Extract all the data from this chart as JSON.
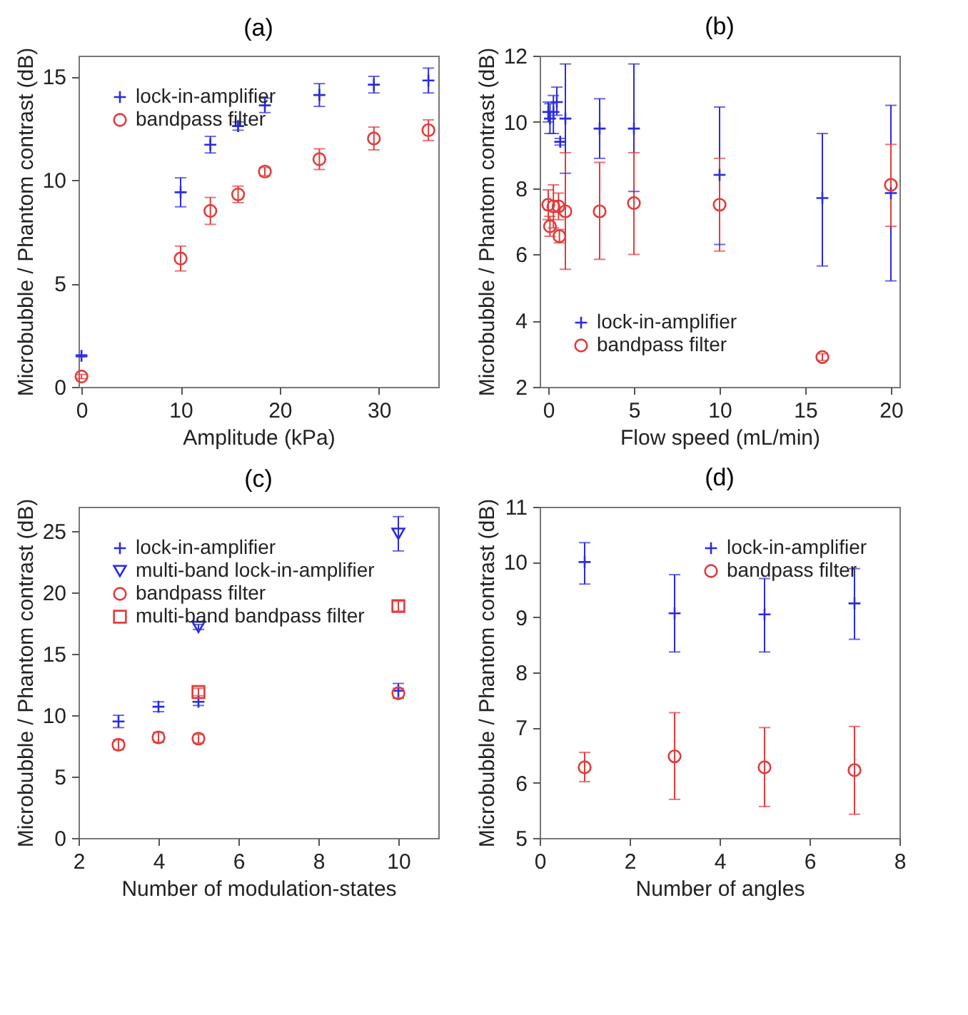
{
  "chart_data": [
    {
      "type": "scatter",
      "title": "(a)",
      "xlabel": "Amplitude (kPa)",
      "ylabel": "Microbubble / Phantom contrast (dB)",
      "xlim": [
        -0.3,
        36
      ],
      "xticks": [
        0,
        10,
        20,
        30
      ],
      "ylim": [
        0,
        16
      ],
      "yticks": [
        0,
        5,
        10,
        15
      ],
      "legend": "top left",
      "series": [
        {
          "name": "lock-in-amplifier",
          "color": "#2b2bdd",
          "marker": "cross",
          "x": [
            0,
            10,
            13,
            15.8,
            18.5,
            24,
            29.5,
            35
          ],
          "values": [
            1.5,
            9.4,
            11.7,
            12.6,
            13.6,
            14.1,
            14.6,
            14.8
          ],
          "errors": [
            [
              1.45,
              1.55
            ],
            [
              8.7,
              10.1
            ],
            [
              11.3,
              12.1
            ],
            [
              12.4,
              12.8
            ],
            [
              13.25,
              13.95
            ],
            [
              13.55,
              14.65
            ],
            [
              14.2,
              15.0
            ],
            [
              14.2,
              15.4
            ]
          ]
        },
        {
          "name": "bandpass filter",
          "color": "#e33b3b",
          "marker": "circle",
          "x": [
            0,
            10,
            13,
            15.8,
            18.5,
            24,
            29.5,
            35
          ],
          "values": [
            0.5,
            6.2,
            8.5,
            9.3,
            10.4,
            11.0,
            12.0,
            12.4
          ],
          "errors": [
            [
              0.4,
              0.6
            ],
            [
              5.6,
              6.8
            ],
            [
              7.85,
              9.15
            ],
            [
              8.9,
              9.7
            ],
            [
              10.2,
              10.6
            ],
            [
              10.5,
              11.5
            ],
            [
              11.45,
              12.55
            ],
            [
              11.9,
              12.9
            ]
          ]
        }
      ]
    },
    {
      "type": "scatter",
      "title": "(b)",
      "xlabel": "Flow speed (mL/min)",
      "ylabel": "Microbubble / Phantom contrast (dB)",
      "xlim": [
        -0.5,
        20.5
      ],
      "xticks": [
        0,
        5,
        10,
        15,
        20
      ],
      "ylim": [
        2,
        12
      ],
      "yticks": [
        2,
        4,
        6,
        8,
        10,
        12
      ],
      "legend": "bottom left",
      "series": [
        {
          "name": "lock-in-amplifier",
          "color": "#2b2bdd",
          "marker": "cross",
          "x": [
            0,
            0.1,
            0.3,
            0.5,
            0.7,
            1,
            3,
            5,
            10,
            16,
            20
          ],
          "values": [
            10.3,
            10.1,
            10.3,
            10.6,
            9.4,
            10.1,
            9.8,
            9.8,
            8.4,
            7.7,
            7.85
          ],
          "errors": [
            [
              10.0,
              10.6
            ],
            [
              9.65,
              10.55
            ],
            [
              9.65,
              10.8
            ],
            [
              10.2,
              11.05
            ],
            [
              9.3,
              9.5
            ],
            [
              8.45,
              11.75
            ],
            [
              8.9,
              10.7
            ],
            [
              7.9,
              11.75
            ],
            [
              6.3,
              10.45
            ],
            [
              5.65,
              9.65
            ],
            [
              5.2,
              10.5
            ]
          ]
        },
        {
          "name": "bandpass filter",
          "color": "#e33b3b",
          "marker": "circle",
          "x": [
            0,
            0.1,
            0.3,
            0.6,
            0.65,
            1,
            3,
            5,
            10,
            16,
            20
          ],
          "values": [
            7.5,
            6.85,
            7.45,
            7.45,
            6.55,
            7.3,
            7.3,
            7.55,
            7.5,
            2.9,
            8.1
          ],
          "errors": [
            [
              7.05,
              7.95
            ],
            [
              6.55,
              7.15
            ],
            [
              6.8,
              8.1
            ],
            [
              7.05,
              7.85
            ],
            [
              6.35,
              6.75
            ],
            [
              5.55,
              9.07
            ],
            [
              5.85,
              8.78
            ],
            [
              6.0,
              9.07
            ],
            [
              6.1,
              8.9
            ],
            [
              2.8,
              3.0
            ],
            [
              6.85,
              9.32
            ]
          ]
        }
      ]
    },
    {
      "type": "scatter",
      "title": "(c)",
      "xlabel": "Number of modulation-states",
      "ylabel": "Microbubble / Phantom contrast (dB)",
      "xlim": [
        2,
        11
      ],
      "xticks": [
        2,
        4,
        6,
        8,
        10
      ],
      "ylim": [
        0,
        27
      ],
      "yticks": [
        0,
        5,
        10,
        15,
        20,
        25
      ],
      "legend": "top left",
      "series": [
        {
          "name": "lock-in-amplifier",
          "color": "#2b2bdd",
          "marker": "cross",
          "x": [
            3,
            4,
            5,
            10
          ],
          "values": [
            9.5,
            10.7,
            11.1,
            12.0
          ],
          "errors": [
            [
              9.0,
              10.0
            ],
            [
              10.3,
              11.1
            ],
            [
              10.8,
              11.4
            ],
            [
              11.4,
              12.6
            ]
          ]
        },
        {
          "name": "multi-band lock-in-amplifier",
          "color": "#2b2bdd",
          "marker": "triangle",
          "x": [
            5,
            10
          ],
          "values": [
            17.2,
            24.8
          ],
          "errors": [
            [
              17.0,
              17.4
            ],
            [
              23.4,
              26.2
            ]
          ]
        },
        {
          "name": "bandpass filter",
          "color": "#e33b3b",
          "marker": "circle",
          "x": [
            3,
            4,
            5,
            10
          ],
          "values": [
            7.6,
            8.2,
            8.1,
            11.8
          ],
          "errors": [
            [
              7.2,
              8.0
            ],
            [
              7.8,
              8.6
            ],
            [
              7.75,
              8.45
            ],
            [
              11.4,
              12.2
            ]
          ]
        },
        {
          "name": "multi-band bandpass filter",
          "color": "#e33b3b",
          "marker": "square",
          "x": [
            5,
            10
          ],
          "values": [
            11.9,
            18.9
          ],
          "errors": [
            [
              11.6,
              12.2
            ],
            [
              18.5,
              19.3
            ]
          ]
        }
      ]
    },
    {
      "type": "scatter",
      "title": "(d)",
      "xlabel": "Number of angles",
      "ylabel": "Microbubble / Phantom contrast (dB)",
      "xlim": [
        0,
        8
      ],
      "xticks": [
        0,
        2,
        4,
        6,
        8
      ],
      "ylim": [
        5,
        11
      ],
      "yticks": [
        5,
        6,
        7,
        8,
        9,
        10,
        11
      ],
      "legend": "top right",
      "series": [
        {
          "name": "lock-in-amplifier",
          "color": "#2b2bdd",
          "marker": "cross",
          "x": [
            1,
            3,
            5,
            7
          ],
          "values": [
            10.0,
            9.07,
            9.05,
            9.25
          ],
          "errors": [
            [
              9.6,
              10.35
            ],
            [
              8.37,
              9.77
            ],
            [
              8.37,
              9.7
            ],
            [
              8.6,
              9.88
            ]
          ]
        },
        {
          "name": "bandpass filter",
          "color": "#e33b3b",
          "marker": "circle",
          "x": [
            1,
            3,
            5,
            7
          ],
          "values": [
            6.28,
            6.48,
            6.28,
            6.23
          ],
          "errors": [
            [
              6.02,
              6.55
            ],
            [
              5.7,
              7.27
            ],
            [
              5.57,
              7.0
            ],
            [
              5.43,
              7.02
            ]
          ]
        }
      ]
    }
  ]
}
